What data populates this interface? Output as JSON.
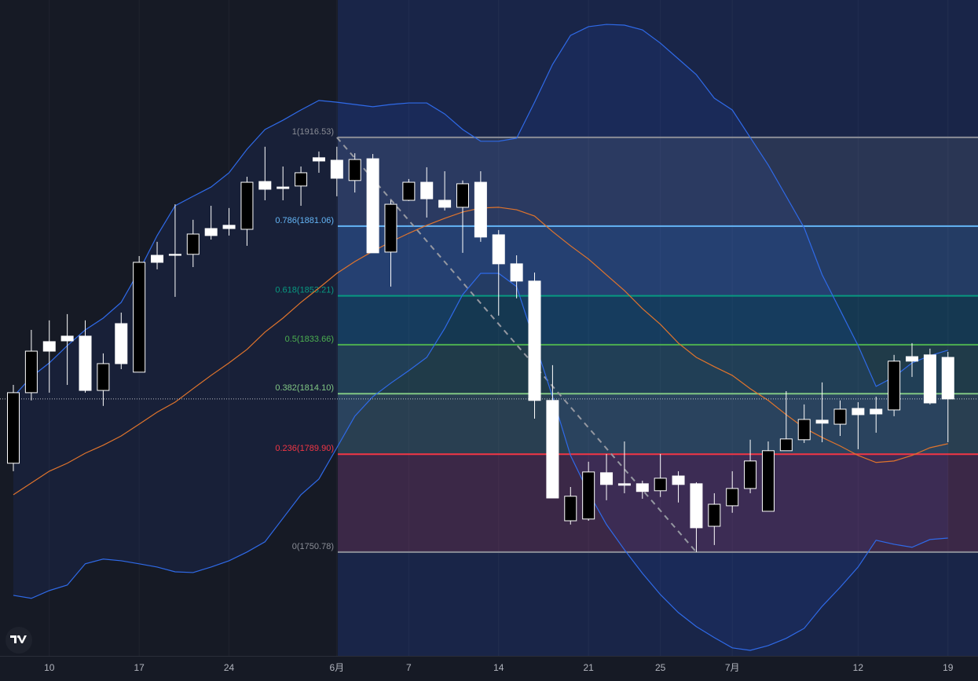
{
  "chart_data": {
    "type": "candlestick",
    "categories": [
      null,
      null,
      "10",
      null,
      null,
      null,
      null,
      "17",
      null,
      null,
      null,
      null,
      "24",
      null,
      null,
      null,
      null,
      null,
      "6月",
      null,
      null,
      null,
      "7",
      null,
      null,
      null,
      null,
      "14",
      null,
      null,
      null,
      null,
      "21",
      null,
      null,
      null,
      "25",
      null,
      null,
      null,
      "7月",
      null,
      null,
      null,
      null,
      null,
      null,
      "12",
      null,
      null,
      null,
      null,
      "19"
    ],
    "open": [
      1786.3,
      1814.5,
      1834.9,
      1837.1,
      1837.1,
      1815.4,
      1842.1,
      1822.7,
      1869.4,
      1869.8,
      1869.8,
      1880.1,
      1881.4,
      1879.8,
      1898.9,
      1896.7,
      1897.1,
      1908.4,
      1907.4,
      1899.3,
      1908.0,
      1870.7,
      1891.4,
      1898.6,
      1891.4,
      1888.6,
      1898.6,
      1877.6,
      1866.0,
      1859.1,
      1811.4,
      1763.3,
      1764.0,
      1782.5,
      1778.1,
      1778.1,
      1775.3,
      1781.2,
      1778.1,
      1761.1,
      1769.3,
      1776.2,
      1767.1,
      1791.3,
      1795.7,
      1803.5,
      1801.9,
      1808.2,
      1807.9,
      1807.6,
      1828.9,
      1829.6,
      1828.6
    ],
    "high": [
      1817.6,
      1839.6,
      1843.4,
      1845.9,
      1843.4,
      1830.2,
      1846.5,
      1869.1,
      1874.8,
      1889.8,
      1883.6,
      1889.2,
      1888.3,
      1900.8,
      1912.8,
      1904.9,
      1904.9,
      1910.9,
      1912.8,
      1910.2,
      1909.9,
      1891.4,
      1899.9,
      1904.6,
      1903.0,
      1899.3,
      1903.0,
      1879.5,
      1869.4,
      1862.5,
      1825.5,
      1776.8,
      1786.9,
      1790.0,
      1795.0,
      1779.3,
      1790.0,
      1783.1,
      1778.7,
      1774.3,
      1783.1,
      1795.7,
      1795.0,
      1815.1,
      1809.8,
      1818.6,
      1811.4,
      1810.7,
      1812.9,
      1829.6,
      1834.3,
      1832.1,
      1830.8
    ],
    "low": [
      1783.1,
      1811.4,
      1814.5,
      1817.6,
      1814.5,
      1809.2,
      1823.9,
      1822.7,
      1863.8,
      1852.8,
      1864.7,
      1875.7,
      1877.3,
      1873.2,
      1891.4,
      1891.4,
      1889.2,
      1902.4,
      1893.0,
      1894.5,
      1870.4,
      1856.9,
      1891.1,
      1884.5,
      1887.3,
      1870.4,
      1874.8,
      1845.3,
      1852.2,
      1804.1,
      1772.4,
      1761.8,
      1763.3,
      1771.5,
      1774.3,
      1772.1,
      1772.8,
      1770.6,
      1750.8,
      1753.6,
      1766.5,
      1774.3,
      1767.1,
      1791.3,
      1794.4,
      1794.7,
      1797.2,
      1791.9,
      1798.5,
      1805.1,
      1820.8,
      1809.8,
      1794.7
    ],
    "close": [
      1814.5,
      1831.1,
      1831.1,
      1835.2,
      1815.4,
      1826.1,
      1826.1,
      1866.6,
      1866.6,
      1869.4,
      1877.9,
      1877.3,
      1880.1,
      1898.6,
      1895.8,
      1896.1,
      1902.4,
      1907.1,
      1900.2,
      1907.7,
      1870.4,
      1889.8,
      1898.6,
      1892.0,
      1888.6,
      1898.0,
      1876.7,
      1866.0,
      1859.1,
      1811.4,
      1772.4,
      1773.1,
      1782.8,
      1777.8,
      1777.5,
      1775.0,
      1780.3,
      1777.8,
      1760.5,
      1769.9,
      1776.2,
      1787.2,
      1791.3,
      1796.0,
      1803.8,
      1802.3,
      1807.9,
      1805.7,
      1806.0,
      1827.1,
      1827.1,
      1810.4,
      1812.0
    ],
    "up_color": "#000000",
    "down_color": "#ffffff",
    "ylim": [
      1709.3,
      1971.45
    ],
    "series": [
      {
        "color": "#2f6ae8",
        "values": [
          1812.9,
          1820.8,
          1826.4,
          1833.3,
          1839.6,
          1844.3,
          1850.6,
          1863.2,
          1877.3,
          1889.2,
          1893.0,
          1896.7,
          1902.4,
          1911.8,
          1919.7,
          1923.4,
          1927.5,
          1931.3,
          1930.6,
          1929.7,
          1928.8,
          1929.7,
          1930.3,
          1930.3,
          1925.9,
          1919.7,
          1915.0,
          1915.0,
          1916.2,
          1930.6,
          1945.7,
          1957.3,
          1960.8,
          1961.7,
          1961.4,
          1959.5,
          1954.2,
          1947.9,
          1941.6,
          1932.2,
          1927.5,
          1916.5,
          1905.5,
          1893.0,
          1880.4,
          1861.6,
          1847.5,
          1833.3,
          1817.0,
          1820.8,
          1826.4,
          1829.3,
          1831.5
        ]
      },
      {
        "color": "#e0742c",
        "values": [
          1773.7,
          1778.4,
          1783.1,
          1786.3,
          1790.3,
          1793.5,
          1797.2,
          1801.9,
          1806.7,
          1810.7,
          1816.1,
          1821.4,
          1826.4,
          1831.8,
          1838.7,
          1844.3,
          1850.6,
          1856.3,
          1862.2,
          1866.9,
          1871.0,
          1874.8,
          1878.2,
          1881.4,
          1884.2,
          1886.7,
          1888.3,
          1888.6,
          1887.6,
          1885.1,
          1878.9,
          1873.2,
          1867.9,
          1861.6,
          1855.3,
          1848.1,
          1841.8,
          1834.3,
          1828.6,
          1824.9,
          1821.4,
          1816.1,
          1811.4,
          1805.7,
          1800.4,
          1796.6,
          1793.2,
          1789.4,
          1786.6,
          1787.2,
          1789.4,
          1792.5,
          1794.1
        ]
      },
      {
        "color": "#2f6ae8",
        "values": [
          1733.5,
          1732.3,
          1735.4,
          1737.6,
          1746.1,
          1748.0,
          1747.3,
          1746.1,
          1744.8,
          1742.9,
          1742.6,
          1744.8,
          1747.3,
          1750.8,
          1754.9,
          1764.3,
          1773.7,
          1780.0,
          1792.5,
          1805.1,
          1812.9,
          1818.3,
          1823.3,
          1828.6,
          1840.2,
          1853.7,
          1862.2,
          1862.2,
          1856.9,
          1834.9,
          1812.9,
          1789.4,
          1774.6,
          1761.8,
          1751.7,
          1742.3,
          1733.8,
          1726.6,
          1721.0,
          1716.6,
          1712.5,
          1711.5,
          1713.4,
          1716.3,
          1720.3,
          1729.1,
          1736.7,
          1744.8,
          1755.5,
          1753.9,
          1752.7,
          1755.8,
          1756.4
        ]
      }
    ],
    "fib_levels": [
      {
        "value": 1916.53,
        "label": "1(1916.53)",
        "color": "#8a8d96"
      },
      {
        "value": 1881.06,
        "label": "0.786(1881.06)",
        "color": "#64b5f6"
      },
      {
        "value": 1853.21,
        "label": "0.618(1853.21)",
        "color": "#089981"
      },
      {
        "value": 1833.66,
        "label": "0.5(1833.66)",
        "color": "#4caf50"
      },
      {
        "value": 1814.1,
        "label": "0.382(1814.10)",
        "color": "#81c784"
      },
      {
        "value": 1789.9,
        "label": "0.236(1789.90)",
        "color": "#f23645"
      },
      {
        "value": 1750.78,
        "label": "0(1750.78)",
        "color": "#8a8d96"
      }
    ]
  }
}
